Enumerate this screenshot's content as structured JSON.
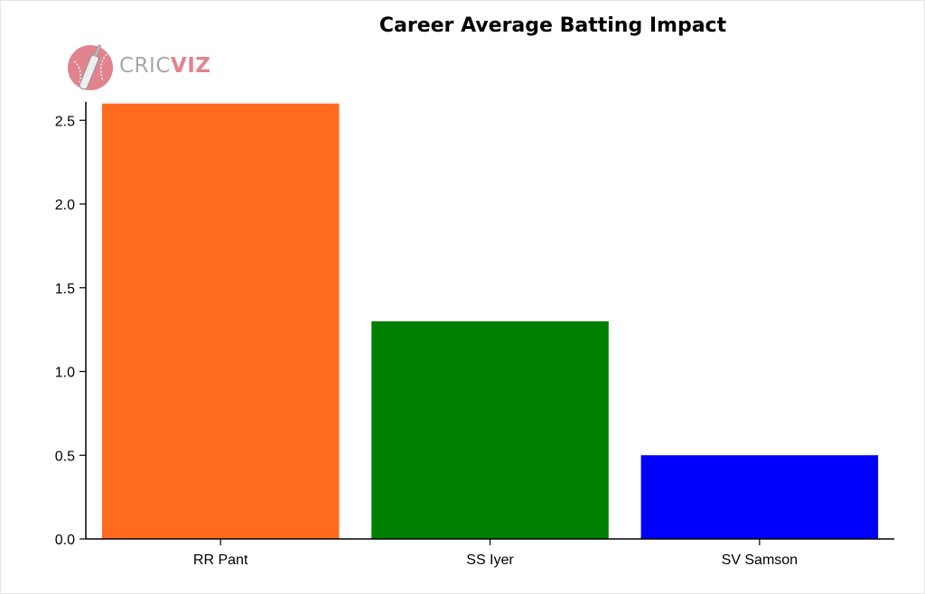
{
  "chart_data": {
    "type": "bar",
    "title": "Career Average Batting Impact",
    "categories": [
      "RR Pant",
      "SS Iyer",
      "SV Samson"
    ],
    "values": [
      2.6,
      1.3,
      0.5
    ],
    "colors": [
      "#ff6a1f",
      "#008000",
      "#0000ff"
    ],
    "xlabel": "",
    "ylabel": "",
    "ylim": [
      0,
      2.6
    ],
    "yticks": [
      "0.0",
      "0.5",
      "1.0",
      "1.5",
      "2.0",
      "2.5"
    ],
    "grid": false
  },
  "logo": {
    "text_a": "CRIC",
    "text_b": "VIZ",
    "icon": "cricket-bat-ball-icon"
  }
}
